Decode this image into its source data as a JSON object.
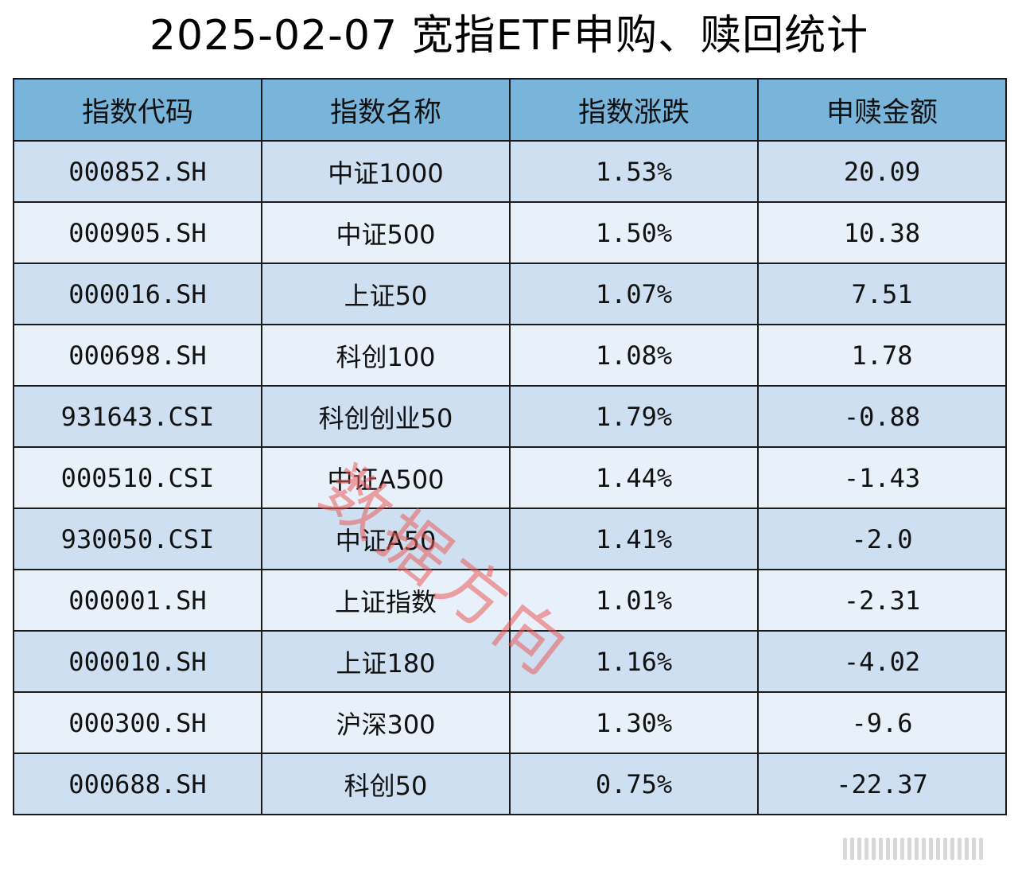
{
  "title": "2025-02-07 宽指ETF申购、赎回统计",
  "headers": [
    "指数代码",
    "指数名称",
    "指数涨跌",
    "申赎金额"
  ],
  "rows": [
    {
      "code": "000852.SH",
      "name": "中证1000",
      "change": "1.53%",
      "amount": "20.09"
    },
    {
      "code": "000905.SH",
      "name": "中证500",
      "change": "1.50%",
      "amount": "10.38"
    },
    {
      "code": "000016.SH",
      "name": "上证50",
      "change": "1.07%",
      "amount": "7.51"
    },
    {
      "code": "000698.SH",
      "name": "科创100",
      "change": "1.08%",
      "amount": "1.78"
    },
    {
      "code": "931643.CSI",
      "name": "科创创业50",
      "change": "1.79%",
      "amount": "-0.88"
    },
    {
      "code": "000510.CSI",
      "name": "中证A500",
      "change": "1.44%",
      "amount": "-1.43"
    },
    {
      "code": "930050.CSI",
      "name": "中证A50",
      "change": "1.41%",
      "amount": "-2.0"
    },
    {
      "code": "000001.SH",
      "name": "上证指数",
      "change": "1.01%",
      "amount": "-2.31"
    },
    {
      "code": "000010.SH",
      "name": "上证180",
      "change": "1.16%",
      "amount": "-4.02"
    },
    {
      "code": "000300.SH",
      "name": "沪深300",
      "change": "1.30%",
      "amount": "-9.6"
    },
    {
      "code": "000688.SH",
      "name": "科创50",
      "change": "0.75%",
      "amount": "-22.37"
    }
  ],
  "watermark": "数据方向",
  "colors": {
    "header_bg": "#79b5db",
    "row_odd": "#cddff0",
    "row_even": "#e8f1fa",
    "watermark": "#ec5a5a"
  }
}
